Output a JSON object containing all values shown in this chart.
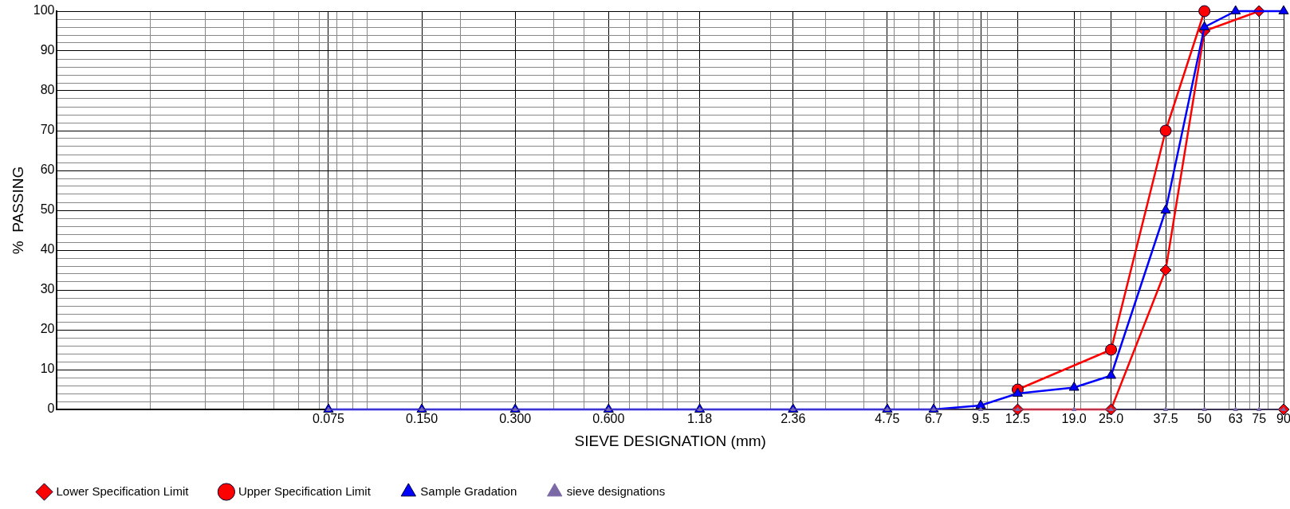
{
  "chart_data": {
    "type": "line",
    "xlabel": "SIEVE DESIGNATION (mm)",
    "ylabel": "%  PASSING",
    "log": "x",
    "grid": true,
    "legend": "bottom left",
    "line_style": "solid",
    "xlim": [
      0.01,
      90
    ],
    "ylim": [
      0,
      100
    ],
    "xticks": [
      0.075,
      {
        "value": 0.15,
        "label": "0.150"
      },
      {
        "value": 0.3,
        "label": "0.300"
      },
      {
        "value": 0.6,
        "label": "0.600"
      },
      1.18,
      2.36,
      4.75,
      6.7,
      9.5,
      12.5,
      {
        "value": 19,
        "label": "19.0"
      },
      {
        "value": 25,
        "label": "25.0"
      },
      37.5,
      50,
      63,
      75,
      90,
      {
        "value": 0.02,
        "label": null
      },
      {
        "value": 0.03,
        "label": null
      },
      {
        "value": 0.04,
        "label": null
      },
      {
        "value": 0.05,
        "label": null
      },
      {
        "value": 0.06,
        "label": null
      },
      {
        "value": 0.07,
        "label": null
      },
      {
        "value": 0.08,
        "label": null
      },
      {
        "value": 0.09,
        "label": null
      },
      {
        "value": 0.1,
        "label": null
      },
      {
        "value": 0.2,
        "label": null
      },
      {
        "value": 0.4,
        "label": null
      },
      {
        "value": 0.5,
        "label": null
      },
      {
        "value": 0.7,
        "label": null
      },
      {
        "value": 0.8,
        "label": null
      },
      {
        "value": 0.9,
        "label": null
      },
      {
        "value": 1,
        "label": null
      },
      {
        "value": 2,
        "label": null
      },
      {
        "value": 3,
        "label": null
      },
      {
        "value": 4,
        "label": null
      },
      {
        "value": 5,
        "label": null
      },
      {
        "value": 6,
        "label": null
      },
      {
        "value": 7,
        "label": null
      },
      {
        "value": 8,
        "label": null
      },
      {
        "value": 9,
        "label": null
      },
      {
        "value": 10,
        "label": null
      },
      {
        "value": 20,
        "label": null
      },
      {
        "value": 30,
        "label": null
      },
      {
        "value": 40,
        "label": null
      },
      {
        "value": 60,
        "label": null
      },
      {
        "value": 70,
        "label": null
      },
      {
        "value": 80,
        "label": null
      }
    ],
    "yticks": [
      0,
      10,
      20,
      30,
      40,
      50,
      60,
      70,
      80,
      90,
      100,
      {
        "value": 2,
        "label": null
      },
      {
        "value": 4,
        "label": null
      },
      {
        "value": 6,
        "label": null
      },
      {
        "value": 8,
        "label": null
      },
      {
        "value": 12,
        "label": null
      },
      {
        "value": 14,
        "label": null
      },
      {
        "value": 16,
        "label": null
      },
      {
        "value": 18,
        "label": null
      },
      {
        "value": 22,
        "label": null
      },
      {
        "value": 24,
        "label": null
      },
      {
        "value": 26,
        "label": null
      },
      {
        "value": 28,
        "label": null
      },
      {
        "value": 32,
        "label": null
      },
      {
        "value": 34,
        "label": null
      },
      {
        "value": 36,
        "label": null
      },
      {
        "value": 38,
        "label": null
      },
      {
        "value": 42,
        "label": null
      },
      {
        "value": 44,
        "label": null
      },
      {
        "value": 46,
        "label": null
      },
      {
        "value": 48,
        "label": null
      },
      {
        "value": 52,
        "label": null
      },
      {
        "value": 54,
        "label": null
      },
      {
        "value": 56,
        "label": null
      },
      {
        "value": 58,
        "label": null
      },
      {
        "value": 62,
        "label": null
      },
      {
        "value": 64,
        "label": null
      },
      {
        "value": 66,
        "label": null
      },
      {
        "value": 68,
        "label": null
      },
      {
        "value": 72,
        "label": null
      },
      {
        "value": 74,
        "label": null
      },
      {
        "value": 76,
        "label": null
      },
      {
        "value": 78,
        "label": null
      },
      {
        "value": 82,
        "label": null
      },
      {
        "value": 84,
        "label": null
      },
      {
        "value": 86,
        "label": null
      },
      {
        "value": 88,
        "label": null
      },
      {
        "value": 92,
        "label": null
      },
      {
        "value": 94,
        "label": null
      },
      {
        "value": 96,
        "label": null
      },
      {
        "value": 98,
        "label": null
      }
    ],
    "series": [
      {
        "name": "sieve designations",
        "color": "#7b68a6",
        "marker": "triangle",
        "x": [
          0.075,
          0.15,
          0.3,
          0.6,
          1.18,
          2.36,
          4.75,
          6.7,
          9.5,
          12.5,
          19,
          25,
          37.5,
          50,
          63,
          75,
          90
        ],
        "values": [
          0,
          0,
          0,
          0,
          0,
          0,
          0,
          0,
          0,
          0,
          0,
          0,
          0,
          0,
          0,
          0,
          0
        ]
      },
      {
        "name": "Sample Gradation",
        "color": "#0000ff",
        "marker": "triangle",
        "x": [
          0.075,
          0.15,
          0.3,
          0.6,
          1.18,
          2.36,
          4.75,
          6.7,
          9.5,
          12.5,
          19,
          25,
          37.5,
          50,
          63,
          75,
          90
        ],
        "values": [
          0,
          0,
          0,
          0,
          0,
          0,
          0,
          0,
          1,
          4,
          5.5,
          8.5,
          50,
          96,
          100,
          null,
          100
        ]
      },
      {
        "name": "Upper Specification Limit",
        "color": "#ff0000",
        "marker": "circle",
        "x": [
          12.5,
          25,
          37.5,
          50
        ],
        "values": [
          5,
          15,
          70,
          100
        ]
      },
      {
        "name": "Lower Specification Limit",
        "color": "#ff0000",
        "marker": "diamond",
        "x": [
          12.5,
          25,
          37.5,
          50,
          75
        ],
        "values": [
          0,
          0,
          35,
          95,
          100
        ]
      },
      {
        "type": "scatter",
        "color": "#ff0000",
        "marker": "diamond",
        "x": [
          90
        ],
        "values": [
          0
        ]
      }
    ]
  }
}
